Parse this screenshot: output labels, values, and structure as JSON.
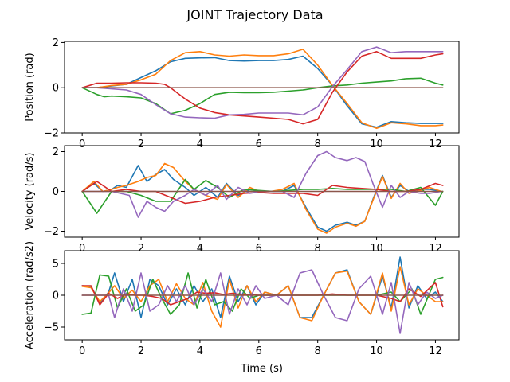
{
  "title": "JOINT Trajectory Data",
  "chart_data": [
    {
      "type": "line",
      "ylabel": "Position (rad)",
      "xlabel": "",
      "xlim": [
        -0.6,
        12.8
      ],
      "ylim": [
        -2.0,
        2.05
      ],
      "xticks": [
        0,
        2,
        4,
        6,
        8,
        10,
        12
      ],
      "yticks": [
        -2,
        0,
        2
      ],
      "series": [
        {
          "color": "#1f77b4",
          "x": [
            0,
            0.5,
            1,
            1.5,
            2,
            2.5,
            3,
            3.5,
            4,
            4.5,
            5,
            5.5,
            6,
            6.5,
            7,
            7.5,
            8,
            8.5,
            9,
            9.5,
            10,
            10.5,
            11,
            11.5,
            12,
            12.25
          ],
          "y": [
            0,
            0,
            0.08,
            0.15,
            0.45,
            0.75,
            1.15,
            1.3,
            1.32,
            1.33,
            1.2,
            1.18,
            1.2,
            1.2,
            1.25,
            1.4,
            0.85,
            0.1,
            -0.8,
            -1.6,
            -1.75,
            -1.5,
            -1.55,
            -1.58,
            -1.58,
            -1.58
          ]
        },
        {
          "color": "#ff7f0e",
          "x": [
            0,
            0.5,
            1,
            1.5,
            2,
            2.5,
            3,
            3.5,
            4,
            4.5,
            5,
            5.5,
            6,
            6.5,
            7,
            7.5,
            8,
            8.5,
            9,
            9.5,
            10,
            10.5,
            11,
            11.5,
            12,
            12.25
          ],
          "y": [
            0,
            0,
            0.1,
            0.15,
            0.35,
            0.6,
            1.2,
            1.55,
            1.6,
            1.45,
            1.4,
            1.45,
            1.42,
            1.42,
            1.5,
            1.7,
            1.0,
            0.1,
            -0.7,
            -1.55,
            -1.8,
            -1.55,
            -1.6,
            -1.68,
            -1.68,
            -1.65
          ]
        },
        {
          "color": "#2ca02c",
          "x": [
            0,
            0.5,
            0.75,
            1,
            1.5,
            2,
            2.5,
            3,
            3.5,
            4,
            4.5,
            5,
            5.5,
            6,
            6.5,
            7,
            7.5,
            8,
            8.5,
            9,
            9.5,
            10,
            10.5,
            11,
            11.5,
            12,
            12.25
          ],
          "y": [
            0,
            -0.3,
            -0.4,
            -0.37,
            -0.4,
            -0.45,
            -0.7,
            -1.15,
            -1.0,
            -0.7,
            -0.3,
            -0.2,
            -0.22,
            -0.22,
            -0.2,
            -0.15,
            -0.1,
            0.0,
            0.08,
            0.12,
            0.2,
            0.25,
            0.3,
            0.4,
            0.42,
            0.2,
            0.12
          ]
        },
        {
          "color": "#d62728",
          "x": [
            0,
            0.5,
            1,
            1.5,
            2,
            2.5,
            2.8,
            3,
            3.5,
            4,
            4.5,
            5,
            5.5,
            6,
            6.5,
            7,
            7.5,
            8,
            8.5,
            9,
            9.5,
            10,
            10.5,
            11,
            11.5,
            12,
            12.25
          ],
          "y": [
            0,
            0.2,
            0.2,
            0.22,
            0.22,
            0.2,
            0.15,
            0,
            -0.5,
            -0.9,
            -1.1,
            -1.2,
            -1.25,
            -1.3,
            -1.35,
            -1.4,
            -1.6,
            -1.4,
            -0.2,
            0.7,
            1.4,
            1.6,
            1.3,
            1.3,
            1.3,
            1.45,
            1.5
          ]
        },
        {
          "color": "#9467bd",
          "x": [
            0,
            0.5,
            1,
            1.5,
            2,
            2.5,
            3,
            3.5,
            4,
            4.5,
            5,
            5.5,
            6,
            6.5,
            7,
            7.5,
            8,
            8.5,
            9,
            9.5,
            10,
            10.5,
            11,
            11.5,
            12,
            12.25
          ],
          "y": [
            0,
            0,
            -0.05,
            -0.1,
            -0.3,
            -0.75,
            -1.15,
            -1.3,
            -1.33,
            -1.35,
            -1.2,
            -1.18,
            -1.12,
            -1.12,
            -1.12,
            -1.2,
            -0.85,
            0.05,
            0.8,
            1.6,
            1.8,
            1.55,
            1.6,
            1.6,
            1.6,
            1.6
          ]
        },
        {
          "color": "#8c564b",
          "x": [
            0,
            12.25
          ],
          "y": [
            0,
            0
          ]
        }
      ]
    },
    {
      "type": "line",
      "ylabel": "Velocity (rad/s)",
      "xlabel": "",
      "xlim": [
        -0.6,
        12.8
      ],
      "ylim": [
        -2.3,
        2.3
      ],
      "xticks": [
        0,
        2,
        4,
        6,
        8,
        10,
        12
      ],
      "yticks": [
        -2,
        0,
        2
      ],
      "series": [
        {
          "color": "#1f77b4",
          "x": [
            0,
            0.4,
            0.7,
            1,
            1.2,
            1.5,
            1.9,
            2.2,
            2.5,
            2.8,
            3.1,
            3.5,
            3.8,
            4.2,
            4.6,
            4.9,
            5.3,
            5.7,
            6,
            6.4,
            6.8,
            7.2,
            7.6,
            8,
            8.3,
            8.6,
            9,
            9.3,
            9.6,
            9.9,
            10.2,
            10.5,
            10.8,
            11.1,
            11.5,
            11.8,
            12.2
          ],
          "y": [
            0,
            0.4,
            0,
            0.1,
            0.3,
            0.2,
            1.3,
            0.5,
            0.85,
            1.1,
            0.6,
            0.2,
            -0.2,
            0.2,
            -0.3,
            0.4,
            -0.2,
            0.1,
            0,
            0,
            0,
            0.3,
            -0.8,
            -1.8,
            -2.0,
            -1.7,
            -1.55,
            -1.7,
            -1.5,
            -0.3,
            0.8,
            -0.3,
            0.3,
            0,
            0.1,
            0.1,
            0
          ]
        },
        {
          "color": "#ff7f0e",
          "x": [
            0,
            0.4,
            0.7,
            1,
            1.2,
            1.5,
            1.9,
            2.2,
            2.5,
            2.8,
            3.1,
            3.5,
            3.8,
            4.2,
            4.6,
            4.9,
            5.3,
            5.7,
            6,
            6.4,
            6.8,
            7.2,
            7.6,
            8,
            8.3,
            8.6,
            9,
            9.3,
            9.6,
            9.9,
            10.2,
            10.5,
            10.8,
            11.1,
            11.5,
            11.8,
            12.2
          ],
          "y": [
            0,
            0.5,
            0,
            0.1,
            0.2,
            0.3,
            0.5,
            0.7,
            0.8,
            1.4,
            1.2,
            0.5,
            0.1,
            -0.2,
            -0.4,
            0.35,
            -0.3,
            0.2,
            0,
            0,
            0.1,
            0.4,
            -0.9,
            -1.9,
            -2.1,
            -1.8,
            -1.6,
            -1.75,
            -1.5,
            -0.35,
            0.75,
            -0.35,
            0.4,
            -0.1,
            0.05,
            0.2,
            0
          ]
        },
        {
          "color": "#2ca02c",
          "x": [
            0,
            0.5,
            1,
            1.5,
            2,
            2.5,
            3,
            3.5,
            3.8,
            4.2,
            4.6,
            5,
            5.5,
            6,
            6.5,
            7,
            7.5,
            8,
            8.5,
            9,
            9.5,
            10,
            10.5,
            11,
            11.5,
            12,
            12.25
          ],
          "y": [
            0,
            -1.1,
            0,
            0,
            -0.2,
            -0.5,
            -0.5,
            0.6,
            0.1,
            0.55,
            0.2,
            -0.3,
            0.1,
            0.05,
            0,
            0.05,
            0.1,
            0.1,
            0.15,
            0.1,
            0.1,
            0.1,
            0.1,
            0,
            0.2,
            -0.7,
            0
          ]
        },
        {
          "color": "#d62728",
          "x": [
            0,
            0.5,
            1,
            1.5,
            2,
            2.5,
            3,
            3.5,
            4,
            4.5,
            5,
            5.5,
            6,
            6.5,
            7,
            7.5,
            8,
            8.5,
            9,
            9.5,
            10,
            10.5,
            11,
            11.5,
            12,
            12.25
          ],
          "y": [
            0,
            0.5,
            0,
            0.1,
            0,
            0,
            -0.3,
            -0.6,
            -0.5,
            -0.3,
            -0.2,
            -0.1,
            -0.05,
            -0.1,
            -0.1,
            -0.1,
            -0.2,
            0.3,
            0.2,
            0.15,
            0.1,
            0,
            0,
            0.1,
            0.4,
            0.3
          ]
        },
        {
          "color": "#9467bd",
          "x": [
            0,
            0.4,
            0.7,
            1,
            1.3,
            1.6,
            1.9,
            2.2,
            2.5,
            2.8,
            3.1,
            3.5,
            3.8,
            4.2,
            4.6,
            4.9,
            5.3,
            5.7,
            6,
            6.4,
            6.8,
            7.2,
            7.6,
            8,
            8.3,
            8.6,
            9,
            9.3,
            9.6,
            9.9,
            10.2,
            10.5,
            10.8,
            11.1,
            11.5,
            11.8,
            12.2
          ],
          "y": [
            0,
            0,
            0,
            0,
            -0.1,
            -0.2,
            -1.3,
            -0.5,
            -0.8,
            -1.0,
            -0.5,
            -0.2,
            0.1,
            -0.2,
            0.3,
            -0.4,
            0.2,
            -0.1,
            0,
            0,
            0,
            -0.3,
            0.9,
            1.8,
            2.0,
            1.7,
            1.55,
            1.7,
            1.5,
            0.3,
            -0.8,
            0.3,
            -0.3,
            0,
            -0.1,
            -0.1,
            0
          ]
        },
        {
          "color": "#8c564b",
          "x": [
            0,
            12.25
          ],
          "y": [
            0,
            0
          ]
        }
      ]
    },
    {
      "type": "line",
      "ylabel": "Acceleration (rad/s2)",
      "xlabel": "Time (s)",
      "xlim": [
        -0.6,
        12.8
      ],
      "ylim": [
        -7,
        7
      ],
      "xticks": [
        0,
        2,
        4,
        6,
        8,
        10,
        12
      ],
      "yticks": [
        -5,
        0,
        5
      ],
      "series": [
        {
          "color": "#1f77b4",
          "x": [
            0,
            0.3,
            0.6,
            0.9,
            1.1,
            1.4,
            1.7,
            2,
            2.3,
            2.6,
            2.9,
            3.2,
            3.5,
            3.8,
            4.1,
            4.4,
            4.7,
            5,
            5.3,
            5.6,
            5.9,
            6.2,
            6.6,
            7,
            7.4,
            7.8,
            8.2,
            8.6,
            9,
            9.4,
            9.8,
            10.2,
            10.5,
            10.8,
            11.1,
            11.4,
            11.7,
            12,
            12.25
          ],
          "y": [
            1.5,
            1.4,
            -1.2,
            0.5,
            3.5,
            -1,
            2.5,
            -3.5,
            2.5,
            1.5,
            -1.5,
            1,
            -1.5,
            1.5,
            -1,
            1,
            -3.5,
            3,
            -1,
            1.5,
            -1.5,
            0.5,
            0,
            1.5,
            -3.5,
            -3.5,
            0,
            3.5,
            4,
            -1,
            -3,
            3,
            -2,
            6,
            -2,
            1.5,
            -0.5,
            0.5,
            -1
          ]
        },
        {
          "color": "#ff7f0e",
          "x": [
            0,
            0.3,
            0.6,
            0.9,
            1.1,
            1.4,
            1.7,
            2,
            2.3,
            2.6,
            2.9,
            3.2,
            3.5,
            3.8,
            4.1,
            4.4,
            4.7,
            5,
            5.3,
            5.6,
            5.9,
            6.2,
            6.6,
            7,
            7.4,
            7.8,
            8.2,
            8.6,
            9,
            9.4,
            9.8,
            10.2,
            10.5,
            10.8,
            11.1,
            11.4,
            11.7,
            12,
            12.25
          ],
          "y": [
            1.4,
            1.2,
            -1,
            0.4,
            1.5,
            -0.5,
            0.8,
            -1,
            1.5,
            2.5,
            -1,
            1.8,
            -0.5,
            -1.5,
            2,
            -2.5,
            -5,
            2.5,
            -2,
            1.5,
            -1,
            0.5,
            0,
            1.5,
            -3.5,
            -4,
            0,
            3.5,
            3.8,
            -1,
            -3,
            3.5,
            -2.5,
            4.5,
            -1.5,
            1,
            0,
            -1,
            -1
          ]
        },
        {
          "color": "#2ca02c",
          "x": [
            0,
            0.3,
            0.6,
            0.9,
            1.2,
            1.5,
            1.8,
            2.1,
            2.4,
            2.7,
            3.0,
            3.3,
            3.6,
            3.9,
            4.2,
            4.5,
            4.8,
            5.1,
            5.4,
            5.7,
            6,
            6.5,
            7,
            7.5,
            8,
            8.5,
            9,
            9.5,
            10,
            10.5,
            10.8,
            11.2,
            11.5,
            12,
            12.25
          ],
          "y": [
            -3,
            -2.8,
            3.2,
            3,
            -2,
            1,
            -2.5,
            -1.5,
            2.5,
            -0.5,
            -3,
            -1.5,
            3.5,
            -2,
            2.5,
            -1.5,
            -1,
            -2.5,
            1,
            -0.5,
            0,
            0,
            0,
            0,
            0,
            0,
            0,
            0,
            0,
            0.5,
            -1,
            1,
            -3,
            2.5,
            2.8
          ]
        },
        {
          "color": "#d62728",
          "x": [
            0,
            0.3,
            0.6,
            0.9,
            1.2,
            1.5,
            1.8,
            2.1,
            2.4,
            2.7,
            3.0,
            3.3,
            3.6,
            3.9,
            4.2,
            4.5,
            4.8,
            5.1,
            5.4,
            5.7,
            6,
            6.5,
            7,
            7.5,
            8,
            8.5,
            9,
            9.5,
            10,
            10.5,
            10.8,
            11.1,
            11.5,
            12,
            12.25
          ],
          "y": [
            1.5,
            1.5,
            -1.5,
            0.3,
            -0.5,
            0.2,
            0,
            0,
            -0.2,
            -0.5,
            -1.5,
            -1,
            -0.5,
            0.5,
            0.3,
            0.4,
            0.1,
            0.3,
            0.1,
            0.1,
            0,
            0,
            0,
            0,
            0,
            0.2,
            0,
            0,
            0,
            -0.5,
            -1,
            1,
            -0.2,
            2,
            -1.8
          ]
        },
        {
          "color": "#9467bd",
          "x": [
            0,
            0.3,
            0.6,
            0.9,
            1.1,
            1.4,
            1.7,
            2,
            2.3,
            2.6,
            2.9,
            3.2,
            3.5,
            3.8,
            4.1,
            4.4,
            4.7,
            5,
            5.3,
            5.6,
            5.9,
            6.2,
            6.6,
            7,
            7.4,
            7.8,
            8.2,
            8.6,
            9,
            9.4,
            9.8,
            10.2,
            10.5,
            10.8,
            11.1,
            11.4,
            11.7,
            12,
            12.25
          ],
          "y": [
            0,
            0,
            0,
            0,
            -3.5,
            1,
            -2.5,
            3.5,
            -2.5,
            -1.5,
            1.5,
            -1,
            1.5,
            -1.5,
            1,
            -1,
            3.5,
            -3,
            1,
            -1.5,
            1.5,
            -0.5,
            0,
            -1.5,
            3.5,
            4,
            0,
            -3.5,
            -4,
            1,
            3,
            -3,
            2,
            -6,
            2,
            -1.5,
            0.5,
            -0.5,
            0
          ]
        },
        {
          "color": "#8c564b",
          "x": [
            0,
            12.25
          ],
          "y": [
            0,
            0
          ]
        }
      ]
    }
  ]
}
